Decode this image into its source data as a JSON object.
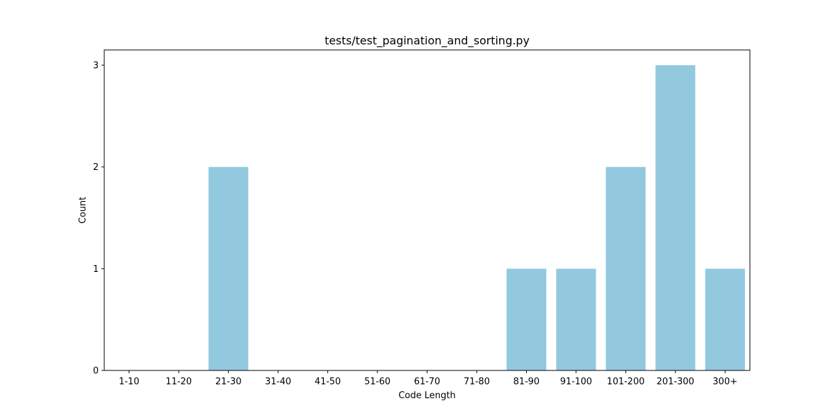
{
  "chart_data": {
    "type": "bar",
    "title": "tests/test_pagination_and_sorting.py",
    "xlabel": "Code Length",
    "ylabel": "Count",
    "categories": [
      "1-10",
      "11-20",
      "21-30",
      "31-40",
      "41-50",
      "51-60",
      "61-70",
      "71-80",
      "81-90",
      "91-100",
      "101-200",
      "201-300",
      "300+"
    ],
    "values": [
      0,
      0,
      2,
      0,
      0,
      0,
      0,
      0,
      1,
      1,
      2,
      3,
      1
    ],
    "ylim": [
      0,
      3.15
    ],
    "yticks": [
      0,
      1,
      2,
      3
    ],
    "grid": false,
    "bar_color": "#92c9df"
  }
}
